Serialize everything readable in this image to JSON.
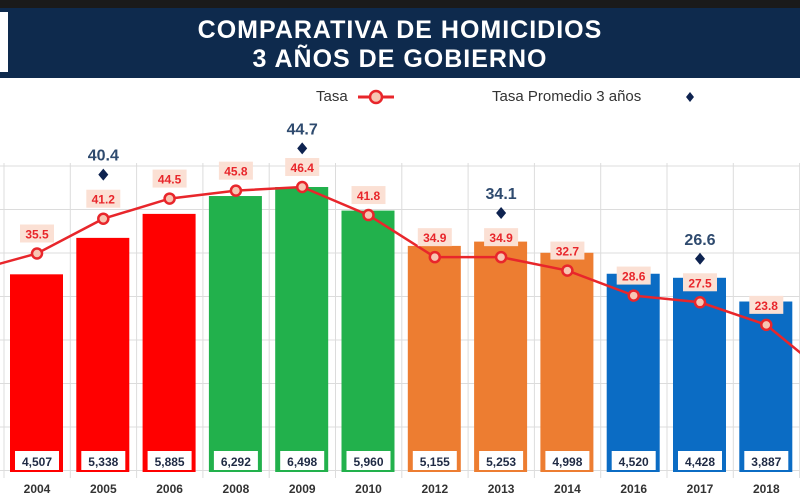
{
  "header": {
    "title_line1": "COMPARATIVA DE HOMICIDIOS",
    "title_line2": "3 AÑOS DE GOBIERNO"
  },
  "chart_data": {
    "type": "bar",
    "categories": [
      "2004",
      "2005",
      "2006",
      "2008",
      "2009",
      "2010",
      "2012",
      "2013",
      "2014",
      "2016",
      "2017",
      "2018"
    ],
    "series": [
      {
        "name": "Homicidios",
        "type": "bar",
        "values": [
          4507,
          5338,
          5885,
          6292,
          6498,
          5960,
          5155,
          5253,
          4998,
          4520,
          4428,
          3887
        ],
        "labels": [
          "4,507",
          "5,338",
          "5,885",
          "6,292",
          "6,498",
          "5,960",
          "5,155",
          "5,253",
          "4,998",
          "4,520",
          "4,428",
          "3,887"
        ],
        "colors": [
          "#ff0000",
          "#ff0000",
          "#ff0000",
          "#22b14c",
          "#22b14c",
          "#22b14c",
          "#ed7d31",
          "#ed7d31",
          "#ed7d31",
          "#0b6cc4",
          "#0b6cc4",
          "#0b6cc4"
        ]
      },
      {
        "name": "Tasa",
        "type": "line",
        "values": [
          35.5,
          41.2,
          44.5,
          45.8,
          46.4,
          41.8,
          34.9,
          34.9,
          32.7,
          28.6,
          27.5,
          23.8
        ],
        "color": "#e8262b"
      },
      {
        "name": "Tasa Promedio 3 años",
        "type": "scatter",
        "points": [
          {
            "category": "2005",
            "value": 40.4
          },
          {
            "category": "2009",
            "value": 44.7
          },
          {
            "category": "2013",
            "value": 34.1
          },
          {
            "category": "2017",
            "value": 26.6
          }
        ],
        "color": "#0e2350"
      }
    ],
    "legend": "top-center",
    "grid": true
  }
}
